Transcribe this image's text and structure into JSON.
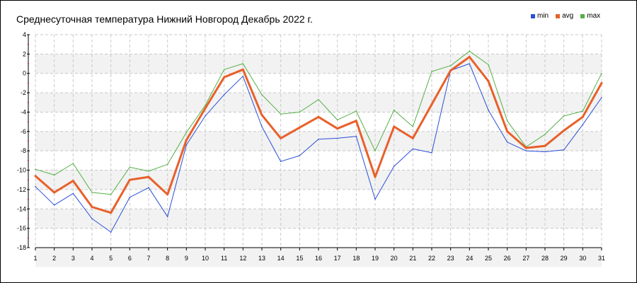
{
  "chart_data": {
    "type": "line",
    "title": "Среднесуточная температура Нижний Новгород  Декабрь 2022 г.",
    "xlabel": "",
    "ylabel": "",
    "categories": [
      "1",
      "2",
      "3",
      "4",
      "5",
      "6",
      "7",
      "8",
      "9",
      "10",
      "11",
      "12",
      "13",
      "14",
      "15",
      "16",
      "17",
      "18",
      "19",
      "20",
      "21",
      "22",
      "23",
      "24",
      "25",
      "26",
      "27",
      "28",
      "29",
      "30",
      "31"
    ],
    "ylim": [
      -18,
      4
    ],
    "yticks": [
      "4",
      "2",
      "0",
      "-2",
      "-4",
      "-6",
      "-8",
      "-10",
      "-12",
      "-14",
      "-16",
      "-18"
    ],
    "grid": true,
    "legend_position": "top-right",
    "series": [
      {
        "name": "min",
        "color": "#2b4fd6",
        "values": [
          -11.7,
          -13.6,
          -12.4,
          -15.0,
          -16.4,
          -12.8,
          -11.8,
          -14.8,
          -7.4,
          -4.4,
          -2.2,
          -0.3,
          -5.5,
          -9.1,
          -8.5,
          -6.8,
          -6.7,
          -6.5,
          -13.0,
          -9.6,
          -7.8,
          -8.2,
          0.3,
          1.0,
          -3.8,
          -7.1,
          -8.0,
          -8.1,
          -7.9,
          -5.3,
          -2.5
        ],
        "width": 1
      },
      {
        "name": "avg",
        "color": "#e8602a",
        "values": [
          -10.6,
          -12.3,
          -11.1,
          -13.8,
          -14.4,
          -11.0,
          -10.7,
          -12.5,
          -6.9,
          -3.6,
          -0.4,
          0.4,
          -4.3,
          -6.7,
          -5.6,
          -4.5,
          -5.7,
          -4.9,
          -10.7,
          -5.5,
          -6.7,
          -3.2,
          0.3,
          1.7,
          -0.8,
          -6.0,
          -7.7,
          -7.5,
          -5.9,
          -4.5,
          -1.0
        ],
        "width": 3
      },
      {
        "name": "max",
        "color": "#55b046",
        "values": [
          -9.9,
          -10.5,
          -9.3,
          -12.3,
          -12.5,
          -9.7,
          -10.1,
          -9.4,
          -6.1,
          -3.3,
          0.4,
          1.0,
          -2.2,
          -4.2,
          -4.0,
          -2.7,
          -4.8,
          -3.9,
          -8.0,
          -3.8,
          -5.5,
          0.2,
          0.8,
          2.3,
          0.9,
          -4.9,
          -7.6,
          -6.3,
          -4.4,
          -3.9,
          0.0
        ],
        "width": 1
      }
    ]
  }
}
